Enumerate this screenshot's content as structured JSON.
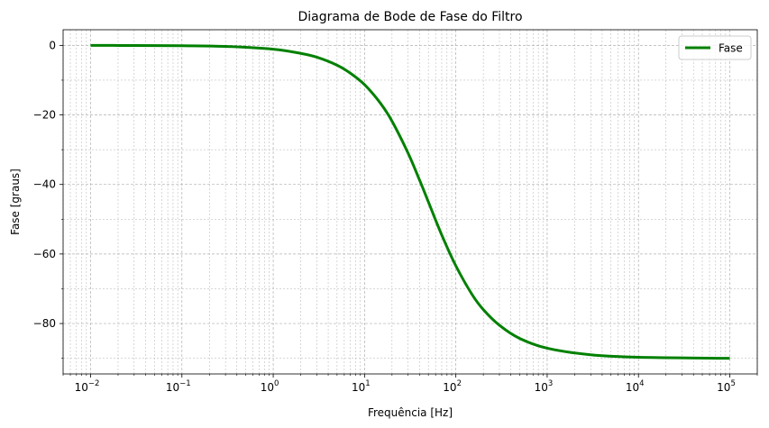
{
  "chart_data": {
    "type": "line",
    "title": "Diagrama de Bode de Fase do Filtro",
    "xlabel": "Frequência [Hz]",
    "ylabel": "Fase [graus]",
    "xscale": "log",
    "xlim": [
      0.005,
      200000
    ],
    "ylim": [
      -94.5,
      4.5
    ],
    "xticks": [
      {
        "value": 0.01,
        "base": "10",
        "exp": "−2"
      },
      {
        "value": 0.1,
        "base": "10",
        "exp": "−1"
      },
      {
        "value": 1,
        "base": "10",
        "exp": "0"
      },
      {
        "value": 10,
        "base": "10",
        "exp": "1"
      },
      {
        "value": 100,
        "base": "10",
        "exp": "2"
      },
      {
        "value": 1000,
        "base": "10",
        "exp": "3"
      },
      {
        "value": 10000,
        "base": "10",
        "exp": "4"
      },
      {
        "value": 100000,
        "base": "10",
        "exp": "5"
      }
    ],
    "yticks": [
      {
        "value": 0,
        "label": "0"
      },
      {
        "value": -20,
        "label": "−20"
      },
      {
        "value": -40,
        "label": "−40"
      },
      {
        "value": -60,
        "label": "−60"
      },
      {
        "value": -80,
        "label": "−80"
      }
    ],
    "grid": true,
    "legend_position": "top-right",
    "series": [
      {
        "name": "Fase",
        "color": "#008000",
        "x": [
          0.01,
          0.03,
          0.1,
          0.3,
          1,
          2,
          3,
          5,
          7,
          10,
          15,
          20,
          30,
          40,
          50,
          70,
          100,
          150,
          200,
          300,
          500,
          1000,
          3000,
          10000,
          100000
        ],
        "y": [
          -0.01,
          -0.03,
          -0.1,
          -0.3,
          -1.1,
          -2.3,
          -3.4,
          -5.7,
          -8.0,
          -11.3,
          -16.7,
          -21.8,
          -31.0,
          -38.7,
          -45.0,
          -54.5,
          -63.4,
          -71.6,
          -76.0,
          -80.5,
          -84.3,
          -87.1,
          -89.0,
          -89.7,
          -90.0
        ]
      }
    ]
  }
}
